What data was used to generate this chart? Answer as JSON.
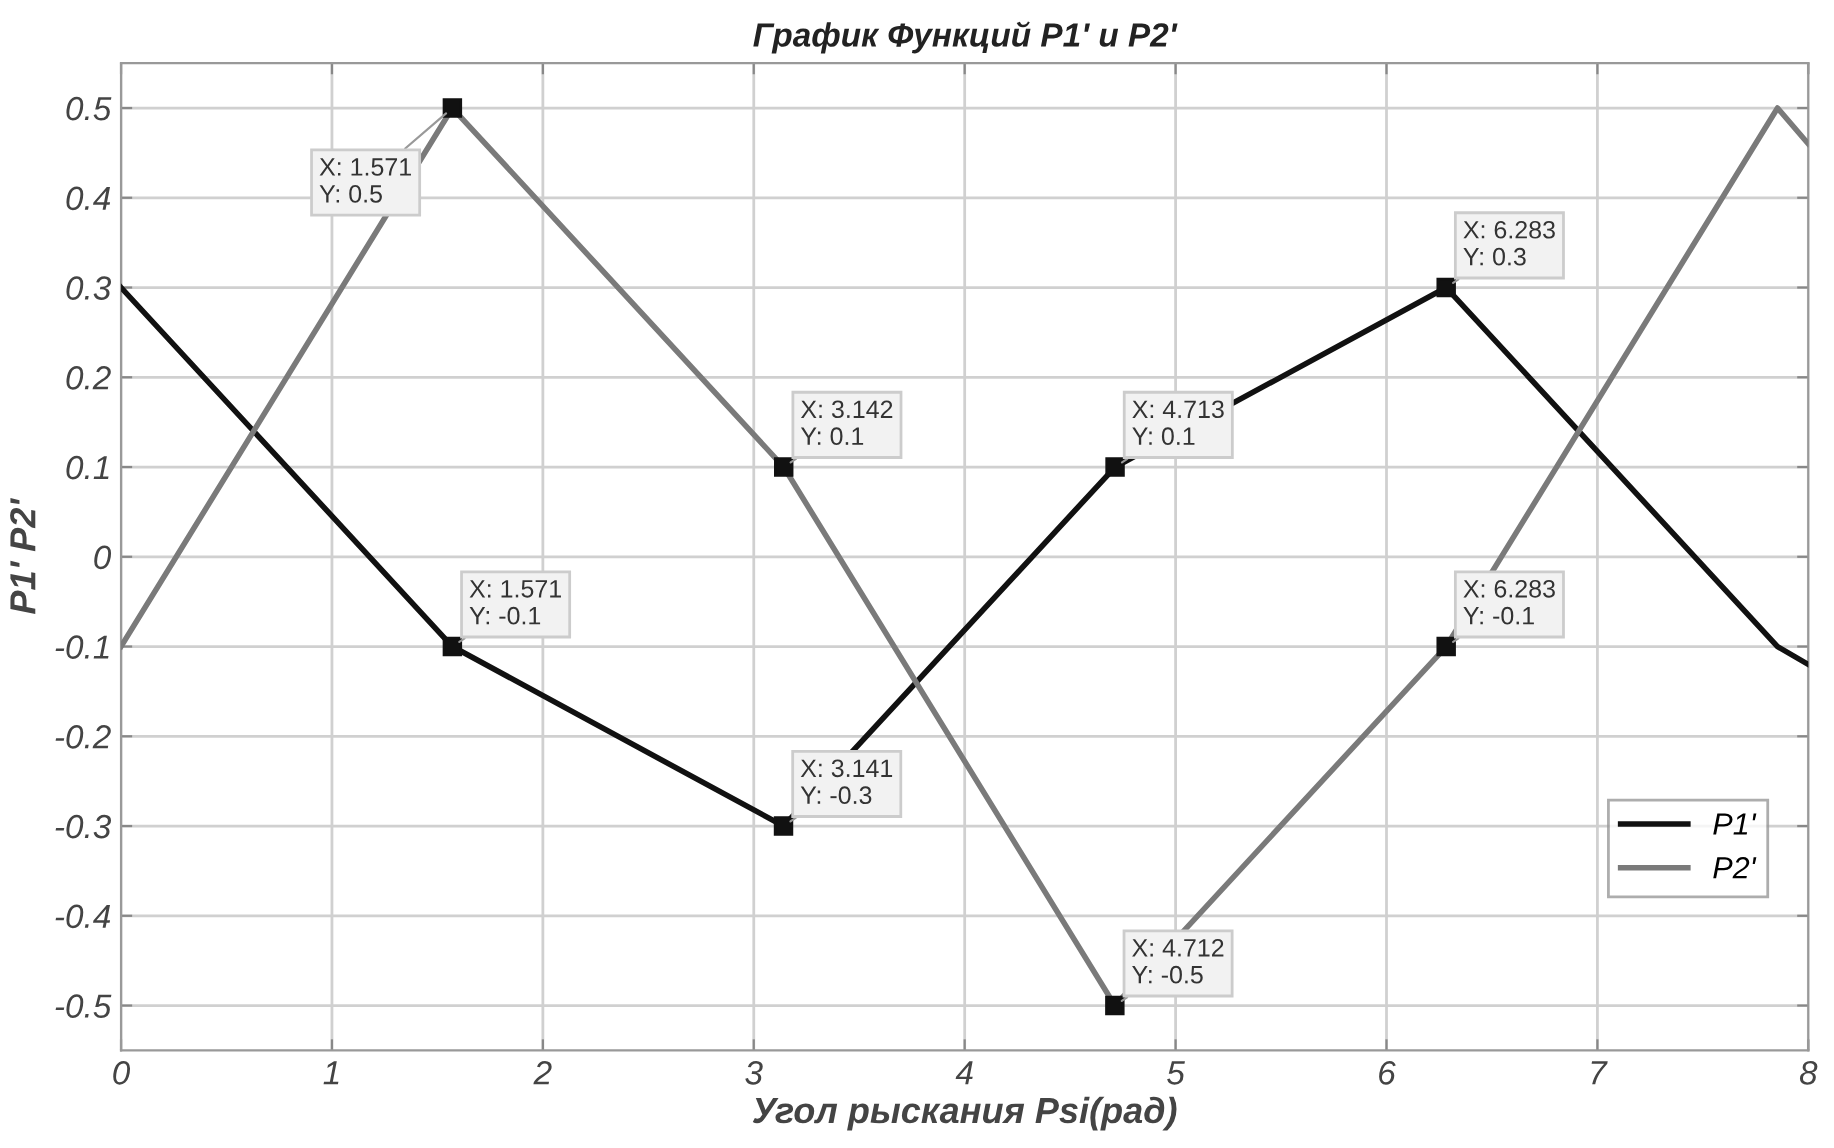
{
  "chart_data": {
    "type": "line",
    "title": "График Функций P1' и P2'",
    "xlabel": "Угол рыскания Psi(рад)",
    "ylabel": "P1' P2'",
    "series": [
      {
        "name": "P1'",
        "color": "#111111",
        "x": [
          0,
          1.571,
          3.141,
          4.713,
          6.283,
          7.854,
          8
        ],
        "values": [
          0.3,
          -0.1,
          -0.3,
          0.1,
          0.3,
          -0.1,
          -0.12
        ]
      },
      {
        "name": "P2'",
        "color": "#7a7a7a",
        "x": [
          0,
          1.571,
          3.142,
          4.712,
          6.283,
          7.854,
          8
        ],
        "values": [
          -0.1,
          0.5,
          0.1,
          -0.5,
          -0.1,
          0.5,
          0.46
        ]
      }
    ],
    "annotations": [
      {
        "text": "X: 1.571\nY: 0.5",
        "x": 1.571,
        "y": 0.5
      },
      {
        "text": "X: 3.142\nY: 0.1",
        "x": 3.142,
        "y": 0.1
      },
      {
        "text": "X: 1.571\nY: -0.1",
        "x": 1.571,
        "y": -0.1
      },
      {
        "text": "X: 3.141\nY: -0.3",
        "x": 3.141,
        "y": -0.3
      },
      {
        "text": "X: 4.713\nY: 0.1",
        "x": 4.713,
        "y": 0.1
      },
      {
        "text": "X: 6.283\nY: 0.3",
        "x": 6.283,
        "y": 0.3
      },
      {
        "text": "X: 6.283\nY: -0.1",
        "x": 6.283,
        "y": -0.1
      },
      {
        "text": "X: 4.712\nY: -0.5",
        "x": 4.712,
        "y": -0.5
      }
    ],
    "xlim": [
      0,
      8
    ],
    "xticks": [
      0,
      1,
      2,
      3,
      4,
      5,
      6,
      7,
      8
    ],
    "ylim": [
      -0.55,
      0.55
    ],
    "yticks": [
      -0.5,
      -0.4,
      -0.3,
      -0.2,
      -0.1,
      0,
      0.1,
      0.2,
      0.3,
      0.4,
      0.5
    ],
    "grid": true,
    "legend": "bottom right",
    "line_style": "solid"
  }
}
